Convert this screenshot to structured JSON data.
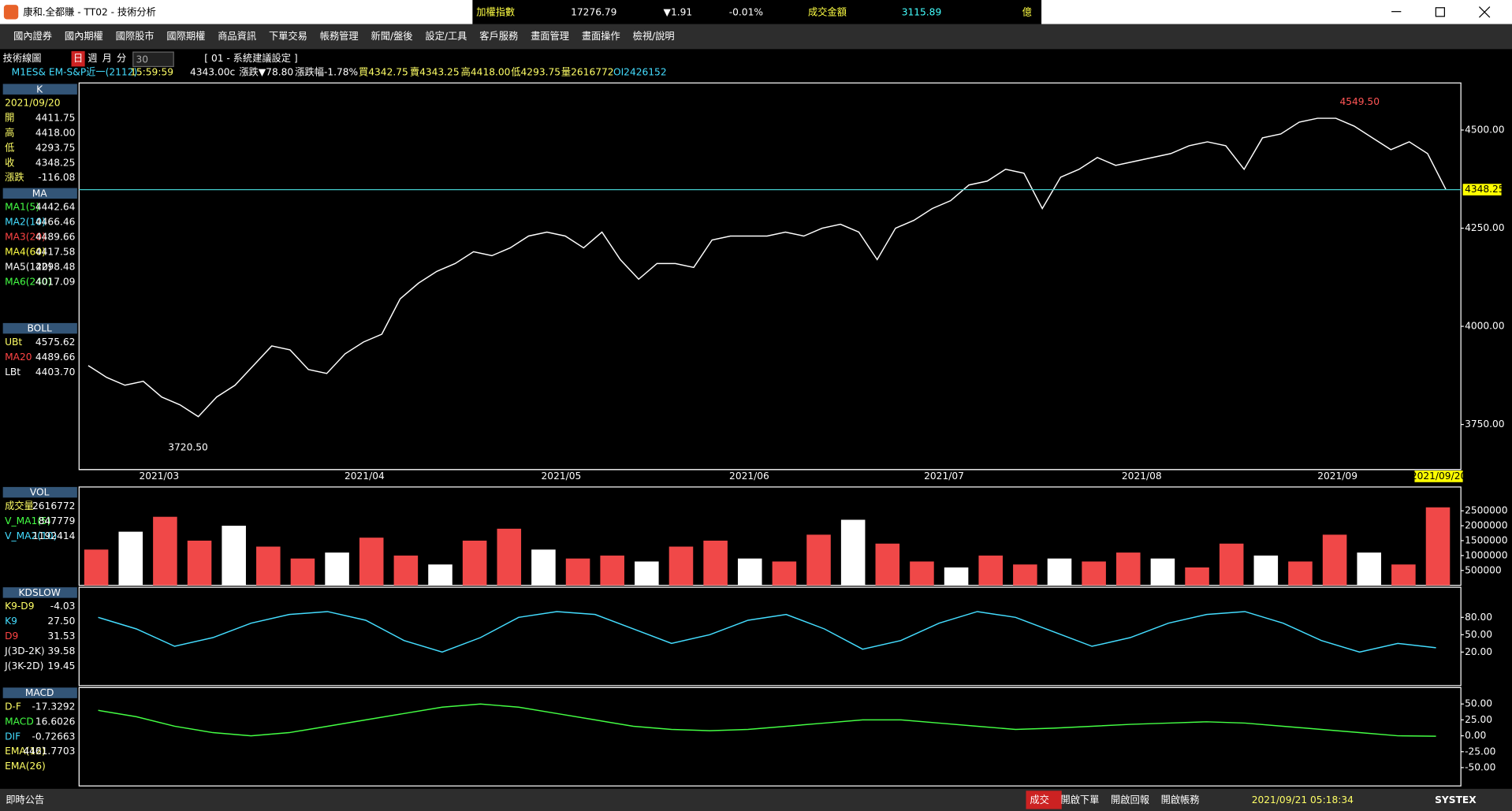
{
  "window": {
    "title": "康和.全都賺 - TT02 - 技術分析"
  },
  "ticker": {
    "index_name": "加權指數",
    "index_value": "17276.79",
    "change": "▼1.91",
    "change_pct": "-0.01%",
    "turnover_label": "成交金額",
    "turnover": "3115.89",
    "unit": "億"
  },
  "menu": [
    "國內證券",
    "國內期權",
    "國際股市",
    "國際期權",
    "商品資訊",
    "下單交易",
    "帳務管理",
    "新聞/盤後",
    "設定/工具",
    "客戶服務",
    "畫面管理",
    "畫面操作",
    "檢視/說明"
  ],
  "toolbar": {
    "title": "技術線圖",
    "periods": [
      "日",
      "週",
      "月",
      "分"
    ],
    "interval": "30",
    "setting": "[ 01 - 系統建議設定 ]"
  },
  "quote": [
    "M1ES&  EM-S&P近一(2112)",
    "15:59:59",
    "4343.00c",
    "漲跌▼78.80",
    "漲跌幅-1.78%",
    "買4342.75",
    "賣4343.25",
    "高4418.00",
    "低4293.75",
    "量2616772",
    "OI2426152"
  ],
  "panels": [
    {
      "header": "K",
      "rows": [
        {
          "label": "2021/09/20",
          "color": "#ffff66"
        },
        {
          "label": "開",
          "value": "4411.75",
          "color": "#ffff66"
        },
        {
          "label": "高",
          "value": "4418.00",
          "color": "#ffff66"
        },
        {
          "label": "低",
          "value": "4293.75",
          "color": "#ffff66"
        },
        {
          "label": "收",
          "value": "4348.25",
          "color": "#ffff66"
        },
        {
          "label": "漲跌",
          "value": "-116.08",
          "color": "#ffff66"
        }
      ]
    },
    {
      "header": "MA",
      "rows": [
        {
          "label": "MA1(5)",
          "value": "4442.64",
          "color": "#44ff44"
        },
        {
          "label": "MA2(10)",
          "value": "4466.46",
          "color": "#44ddff"
        },
        {
          "label": "MA3(20)",
          "value": "4489.66",
          "color": "#ff4444"
        },
        {
          "label": "MA4(60)",
          "value": "4417.58",
          "color": "#ffff44"
        },
        {
          "label": "MA5(120)",
          "value": "4298.48",
          "color": "#ffffff"
        },
        {
          "label": "MA6(240)",
          "value": "4017.09",
          "color": "#44ff44"
        }
      ]
    },
    {
      "header": "BOLL",
      "rows": [
        {
          "label": "UBt",
          "value": "4575.62",
          "color": "#ffff66"
        },
        {
          "label": "MA20",
          "value": "4489.66",
          "color": "#ff4444"
        },
        {
          "label": "LBt",
          "value": "4403.70",
          "color": "#ffffff"
        }
      ]
    },
    {
      "header": "VOL",
      "rows": [
        {
          "label": "成交量",
          "value": "2616772",
          "color": "#ffff66"
        },
        {
          "label": "V_MA1(5)",
          "value": "847779",
          "color": "#44ff44"
        },
        {
          "label": "V_MA2(10)",
          "value": "1192414",
          "color": "#44ddff"
        }
      ]
    },
    {
      "header": "KDSLOW",
      "rows": [
        {
          "label": "K9-D9",
          "value": "-4.03",
          "color": "#ffff66"
        },
        {
          "label": "K9",
          "value": "27.50",
          "color": "#44ddff"
        },
        {
          "label": "D9",
          "value": "31.53",
          "color": "#ff4444"
        },
        {
          "label": "J(3D-2K)",
          "value": "39.58",
          "color": "#ffffff"
        },
        {
          "label": "J(3K-2D)",
          "value": "19.45",
          "color": "#ffffff"
        }
      ]
    },
    {
      "header": "MACD",
      "rows": [
        {
          "label": "D-F",
          "value": "-17.3292",
          "color": "#ffff66"
        },
        {
          "label": "MACD",
          "value": "16.6026",
          "color": "#44ff44"
        },
        {
          "label": "DIF",
          "value": "-0.72663",
          "color": "#44ddff"
        },
        {
          "label": "EMA(12)",
          "value": "4461.7703",
          "color": "#ffff66"
        },
        {
          "label": "EMA(26)",
          "color": "#ffff66"
        }
      ]
    }
  ],
  "chart_data": [
    {
      "type": "line",
      "color": "#ffffff",
      "values": [
        3900,
        3870,
        3850,
        3860,
        3820,
        3800,
        3770,
        3820,
        3850,
        3900,
        3950,
        3940,
        3890,
        3880,
        3930,
        3960,
        3980,
        4070,
        4110,
        4140,
        4160,
        4190,
        4180,
        4200,
        4230,
        4240,
        4230,
        4200,
        4240,
        4170,
        4120,
        4160,
        4160,
        4150,
        4220,
        4230,
        4230,
        4230,
        4240,
        4230,
        4250,
        4260,
        4240,
        4170,
        4250,
        4270,
        4300,
        4320,
        4360,
        4370,
        4400,
        4390,
        4300,
        4380,
        4400,
        4430,
        4410,
        4420,
        4430,
        4440,
        4460,
        4470,
        4460,
        4400,
        4480,
        4490,
        4520,
        4530,
        4530,
        4510,
        4480,
        4450,
        4470,
        4440,
        4348.25
      ],
      "ylim": [
        3635,
        4620
      ],
      "yticks": [
        {
          "value": 3750,
          "label": "3750.00"
        },
        {
          "value": 4000,
          "label": "4000.00"
        },
        {
          "value": 4250,
          "label": "4250.00"
        },
        {
          "value": 4500,
          "label": "4500.00"
        }
      ],
      "x_labels": [
        "2021/03",
        "2021/04",
        "2021/05",
        "2021/06",
        "2021/07",
        "2021/08",
        "2021/09"
      ],
      "last_date": "2021/09/20",
      "annotations": [
        {
          "value": 4549.5,
          "label": "4549.50"
        },
        {
          "value": 3720.5,
          "label": "3720.50"
        }
      ],
      "last_price": {
        "value": 4348.25,
        "label": "4348.25"
      }
    },
    {
      "type": "bar",
      "color": "#f04848",
      "values": [
        1200000,
        1800000,
        2300000,
        1500000,
        2000000,
        1300000,
        900000,
        1100000,
        1600000,
        1000000,
        700000,
        1500000,
        1900000,
        1200000,
        900000,
        1000000,
        800000,
        1300000,
        1500000,
        900000,
        800000,
        1700000,
        2200000,
        1400000,
        800000,
        600000,
        1000000,
        700000,
        900000,
        800000,
        1100000,
        900000,
        600000,
        1400000,
        1000000,
        800000,
        1700000,
        1100000,
        700000,
        2616772
      ],
      "ylim": [
        0,
        3300000
      ],
      "yticks": [
        500000,
        1000000,
        1500000,
        2000000,
        2500000
      ]
    },
    {
      "type": "line",
      "color": "#44ddff",
      "values": [
        80,
        60,
        30,
        45,
        70,
        85,
        90,
        75,
        40,
        20,
        45,
        80,
        90,
        85,
        60,
        35,
        50,
        75,
        85,
        60,
        25,
        40,
        70,
        90,
        80,
        55,
        30,
        45,
        70,
        85,
        90,
        70,
        40,
        20,
        35,
        27.5
      ],
      "ylim": [
        -38,
        132
      ],
      "yticks": [
        {
          "value": 20,
          "label": "20.00"
        },
        {
          "value": 50,
          "label": "50.00"
        },
        {
          "value": 80,
          "label": "80.00"
        }
      ]
    },
    {
      "type": "line",
      "color": "#44ff44",
      "values": [
        40,
        30,
        15,
        5,
        0,
        5,
        15,
        25,
        35,
        45,
        50,
        45,
        35,
        25,
        15,
        10,
        8,
        10,
        15,
        20,
        25,
        25,
        20,
        15,
        10,
        12,
        15,
        18,
        20,
        22,
        20,
        15,
        10,
        5,
        0,
        -0.72663
      ],
      "ylim": [
        -78.8,
        75.8
      ],
      "yticks": [
        {
          "value": -50,
          "label": "-50.00"
        },
        {
          "value": -25,
          "label": "-25.00"
        },
        {
          "value": 0,
          "label": "0.00"
        },
        {
          "value": 25,
          "label": "25.00"
        },
        {
          "value": 50,
          "label": "50.00"
        }
      ]
    }
  ],
  "status": {
    "notice": "即時公告",
    "buttons": [
      "成交",
      "開啟下單",
      "開啟回報",
      "開啟帳務"
    ],
    "datetime": "2021/09/21 05:18:34",
    "brand": "SYSTEX"
  }
}
